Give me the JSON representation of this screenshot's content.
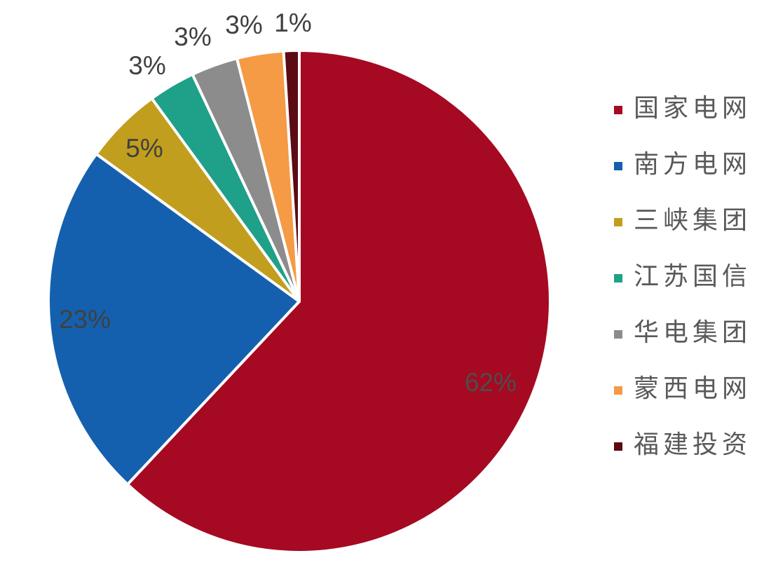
{
  "chart_data": {
    "type": "pie",
    "title": "",
    "start_angle_deg": 0,
    "direction": "clockwise",
    "slices": [
      {
        "label": "国家电网",
        "value": 62,
        "display": "62%",
        "color": "#A50A22",
        "label_color": "#4D4D4D",
        "label_outside": false
      },
      {
        "label": "南方电网",
        "value": 23,
        "display": "23%",
        "color": "#1560AE",
        "label_color": "#404040",
        "label_outside": false
      },
      {
        "label": "三峡集团",
        "value": 5,
        "display": "5%",
        "color": "#C29E1E",
        "label_color": "#404040",
        "label_outside": false
      },
      {
        "label": "江苏国信",
        "value": 3,
        "display": "3%",
        "color": "#1FA088",
        "label_color": "#404040",
        "label_outside": true
      },
      {
        "label": "华电集团",
        "value": 3,
        "display": "3%",
        "color": "#8C8C8C",
        "label_color": "#404040",
        "label_outside": true
      },
      {
        "label": "蒙西电网",
        "value": 3,
        "display": "3%",
        "color": "#F59A45",
        "label_color": "#404040",
        "label_outside": true
      },
      {
        "label": "福建投资",
        "value": 1,
        "display": "1%",
        "color": "#5C0A14",
        "label_color": "#404040",
        "label_outside": true
      }
    ],
    "legend_position": "right"
  }
}
